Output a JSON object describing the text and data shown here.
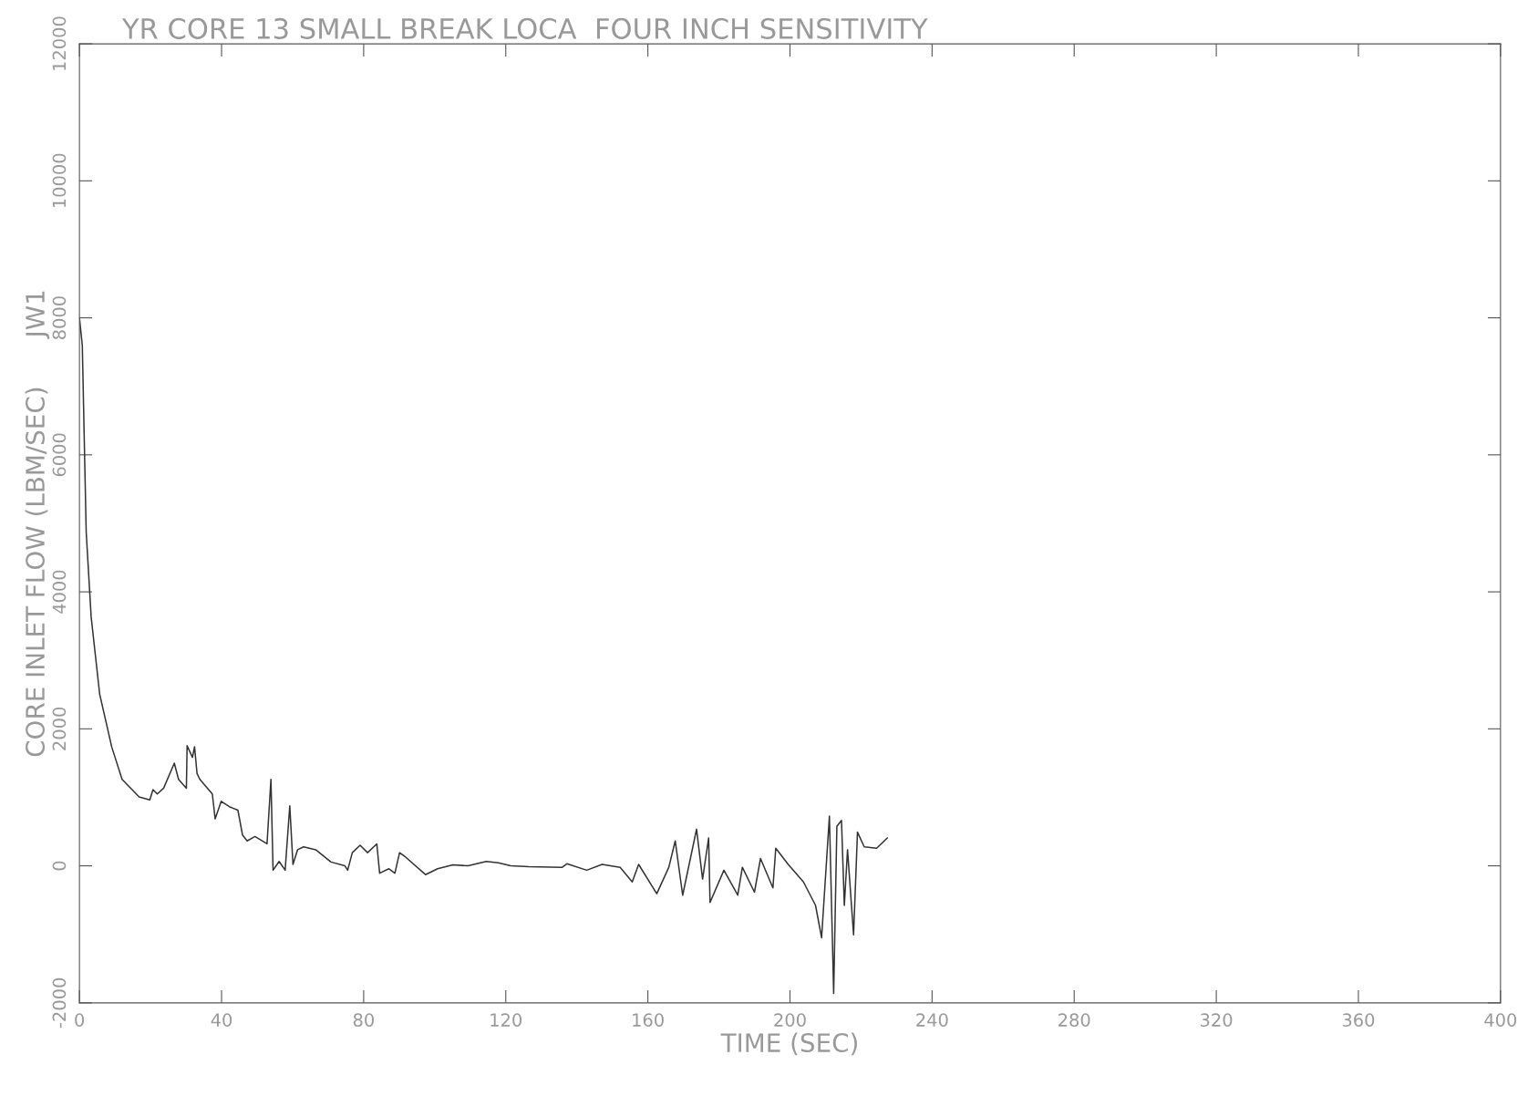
{
  "chart_data": {
    "type": "line",
    "title": "YR CORE 13 SMALL BREAK LOCA  FOUR INCH SENSITIVITY",
    "xlabel": "TIME (SEC)",
    "ylabel": "CORE INLET FLOW (LBM/SEC)      JW1",
    "xlim": [
      0,
      400
    ],
    "xticks": [
      0,
      40,
      80,
      120,
      160,
      200,
      240,
      280,
      320,
      360,
      400
    ],
    "ylim": [
      -2000,
      12000
    ],
    "yticks": [
      -2000,
      0,
      2000,
      4000,
      6000,
      8000,
      10000,
      12000
    ],
    "grid": false,
    "legend": false,
    "marker": "none",
    "line_style": "solid",
    "series": [
      {
        "color": "#333333",
        "x": [
          0,
          0.8,
          1.9,
          3.3,
          5.7,
          9.1,
          12.0,
          16.8,
          19.8,
          20.7,
          21.9,
          23.7,
          26.7,
          27.9,
          30.1,
          30.3,
          31.8,
          32.4,
          33.1,
          33.9,
          37.4,
          38.2,
          39.9,
          42.5,
          44.6,
          45.9,
          47.2,
          49.4,
          52.8,
          53.9,
          54.5,
          56.2,
          57.9,
          59.2,
          60.1,
          61.4,
          63.1,
          66.5,
          70.8,
          74.7,
          75.5,
          76.8,
          79.0,
          81.1,
          83.7,
          84.5,
          87.1,
          88.8,
          90.1,
          91.8,
          97.4,
          100.8,
          105.1,
          109.4,
          114.5,
          117.9,
          121.4,
          126.5,
          135.9,
          137.2,
          142.8,
          147.1,
          152.2,
          155.6,
          157.4,
          162.5,
          165.9,
          167.7,
          169.8,
          173.7,
          175.4,
          177.1,
          177.5,
          181.4,
          185.3,
          186.6,
          190.0,
          191.7,
          195.2,
          196.0,
          199.5,
          203.8,
          207.2,
          208.9,
          211.1,
          212.3,
          213.2,
          214.5,
          215.3,
          216.2,
          217.9,
          219.0,
          220.9,
          224.4,
          227.4
        ],
        "values": [
          8000,
          7600,
          4870,
          3630,
          2504,
          1733,
          1262,
          1006,
          963,
          1113,
          1049,
          1134,
          1498,
          1262,
          1134,
          1755,
          1584,
          1738,
          1348,
          1262,
          1049,
          685,
          942,
          856,
          813,
          449,
          364,
          428,
          321,
          1262,
          -64,
          64,
          -64,
          877,
          21,
          235,
          278,
          235,
          56,
          0,
          -64,
          192,
          300,
          192,
          321,
          -107,
          -43,
          -107,
          192,
          128,
          -128,
          -43,
          13,
          0,
          64,
          43,
          0,
          -13,
          -21,
          30,
          -64,
          21,
          -21,
          -235,
          21,
          -406,
          -21,
          364,
          -428,
          535,
          -193,
          407,
          -535,
          -64,
          -428,
          -21,
          -385,
          107,
          -321,
          257,
          21,
          -235,
          -578,
          -1049,
          727,
          -1862,
          578,
          663,
          -578,
          235,
          -1006,
          492,
          278,
          257,
          407
        ]
      }
    ]
  }
}
